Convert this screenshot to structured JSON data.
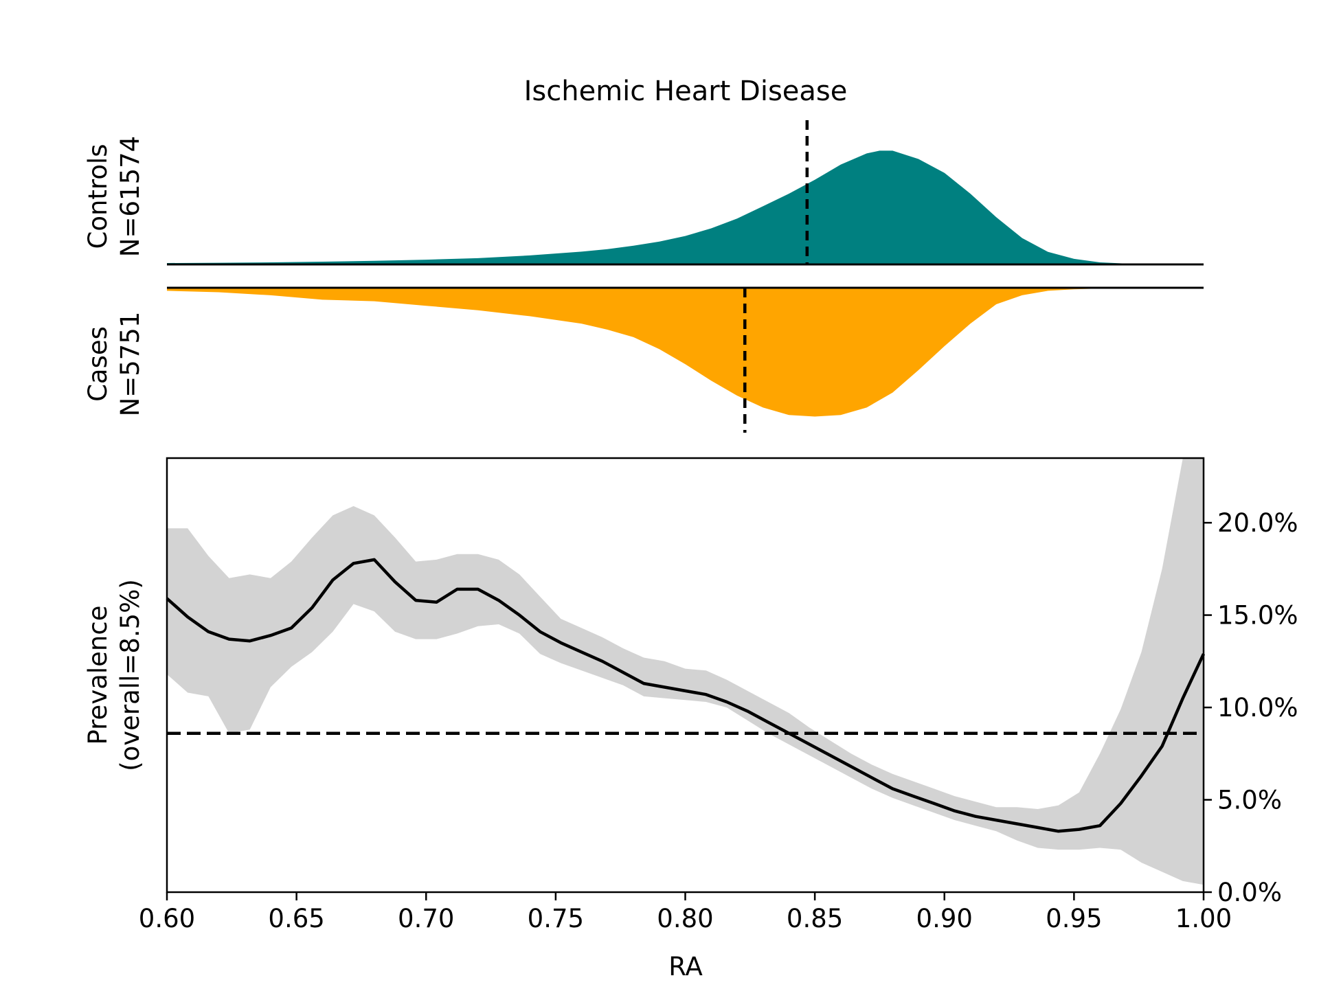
{
  "chart_data": [
    {
      "type": "area",
      "title": "Ischemic Heart Disease",
      "ylabel_line1": "Controls",
      "ylabel_line2": "N=61574",
      "color": "#008080",
      "x": [
        0.6,
        0.62,
        0.64,
        0.66,
        0.68,
        0.7,
        0.72,
        0.74,
        0.76,
        0.77,
        0.78,
        0.79,
        0.8,
        0.81,
        0.82,
        0.83,
        0.84,
        0.85,
        0.86,
        0.87,
        0.875,
        0.88,
        0.89,
        0.9,
        0.91,
        0.92,
        0.93,
        0.94,
        0.95,
        0.96,
        0.97,
        0.98,
        0.99,
        1.0
      ],
      "y": [
        0.01,
        0.012,
        0.015,
        0.02,
        0.026,
        0.034,
        0.045,
        0.065,
        0.092,
        0.11,
        0.135,
        0.165,
        0.205,
        0.26,
        0.33,
        0.42,
        0.51,
        0.61,
        0.72,
        0.8,
        0.82,
        0.82,
        0.76,
        0.66,
        0.51,
        0.34,
        0.19,
        0.09,
        0.04,
        0.015,
        0.006,
        0.002,
        0.001,
        0.0
      ],
      "median_marker": 0.847
    },
    {
      "type": "area",
      "ylabel_line1": "Cases",
      "ylabel_line2": "N=5751",
      "color": "#ffa500",
      "x": [
        0.6,
        0.62,
        0.64,
        0.66,
        0.68,
        0.7,
        0.72,
        0.74,
        0.76,
        0.77,
        0.78,
        0.79,
        0.8,
        0.81,
        0.82,
        0.83,
        0.84,
        0.85,
        0.86,
        0.87,
        0.88,
        0.89,
        0.9,
        0.91,
        0.92,
        0.93,
        0.94,
        0.95,
        0.96,
        0.97,
        0.98,
        0.99,
        1.0
      ],
      "y": [
        0.02,
        0.03,
        0.05,
        0.08,
        0.09,
        0.12,
        0.15,
        0.19,
        0.24,
        0.28,
        0.33,
        0.41,
        0.51,
        0.62,
        0.72,
        0.8,
        0.85,
        0.86,
        0.85,
        0.8,
        0.7,
        0.55,
        0.39,
        0.24,
        0.11,
        0.05,
        0.02,
        0.01,
        0.005,
        0.002,
        0.001,
        0.0,
        0.0
      ],
      "median_marker": 0.823
    },
    {
      "type": "line",
      "xlabel": "RA",
      "ylabel_line1": "Prevalence",
      "ylabel_line2": "(overall=8.5%)",
      "xlim": [
        0.6,
        1.0
      ],
      "ylim": [
        0.0,
        0.235
      ],
      "xticks": [
        "0.60",
        "0.65",
        "0.70",
        "0.75",
        "0.80",
        "0.85",
        "0.90",
        "0.95",
        "1.00"
      ],
      "yticks": [
        0.0,
        0.05,
        0.1,
        0.15,
        0.2
      ],
      "ytick_labels": [
        "0.0%",
        "5.0%",
        "10.0%",
        "15.0%",
        "20.0%"
      ],
      "reference_line": 0.086,
      "x": [
        0.6,
        0.608,
        0.616,
        0.624,
        0.632,
        0.64,
        0.648,
        0.656,
        0.664,
        0.672,
        0.68,
        0.688,
        0.696,
        0.704,
        0.712,
        0.72,
        0.728,
        0.736,
        0.744,
        0.752,
        0.76,
        0.768,
        0.776,
        0.784,
        0.792,
        0.8,
        0.808,
        0.816,
        0.824,
        0.832,
        0.84,
        0.848,
        0.856,
        0.864,
        0.872,
        0.88,
        0.888,
        0.896,
        0.904,
        0.912,
        0.92,
        0.928,
        0.936,
        0.944,
        0.952,
        0.96,
        0.968,
        0.976,
        0.984,
        0.992,
        1.0
      ],
      "y": [
        0.159,
        0.149,
        0.141,
        0.137,
        0.136,
        0.139,
        0.143,
        0.154,
        0.169,
        0.178,
        0.18,
        0.168,
        0.158,
        0.157,
        0.164,
        0.164,
        0.158,
        0.15,
        0.141,
        0.135,
        0.13,
        0.125,
        0.119,
        0.113,
        0.111,
        0.109,
        0.107,
        0.103,
        0.098,
        0.092,
        0.086,
        0.08,
        0.074,
        0.068,
        0.062,
        0.056,
        0.052,
        0.048,
        0.044,
        0.041,
        0.039,
        0.037,
        0.035,
        0.033,
        0.034,
        0.036,
        0.048,
        0.063,
        0.079,
        0.105,
        0.129
      ],
      "ci_upper": [
        0.197,
        0.197,
        0.182,
        0.17,
        0.172,
        0.17,
        0.179,
        0.192,
        0.204,
        0.209,
        0.204,
        0.192,
        0.179,
        0.18,
        0.183,
        0.183,
        0.18,
        0.172,
        0.16,
        0.148,
        0.143,
        0.138,
        0.132,
        0.127,
        0.125,
        0.121,
        0.12,
        0.115,
        0.109,
        0.103,
        0.097,
        0.089,
        0.082,
        0.075,
        0.069,
        0.064,
        0.06,
        0.056,
        0.052,
        0.049,
        0.046,
        0.046,
        0.045,
        0.047,
        0.054,
        0.075,
        0.099,
        0.13,
        0.175,
        0.235,
        0.235
      ],
      "ci_lower": [
        0.118,
        0.108,
        0.106,
        0.086,
        0.088,
        0.111,
        0.122,
        0.13,
        0.141,
        0.156,
        0.152,
        0.141,
        0.137,
        0.137,
        0.14,
        0.144,
        0.145,
        0.14,
        0.129,
        0.124,
        0.12,
        0.116,
        0.112,
        0.106,
        0.105,
        0.104,
        0.103,
        0.1,
        0.093,
        0.086,
        0.08,
        0.074,
        0.068,
        0.062,
        0.056,
        0.051,
        0.047,
        0.043,
        0.039,
        0.036,
        0.033,
        0.028,
        0.024,
        0.023,
        0.023,
        0.024,
        0.023,
        0.016,
        0.011,
        0.006,
        0.004
      ]
    }
  ]
}
